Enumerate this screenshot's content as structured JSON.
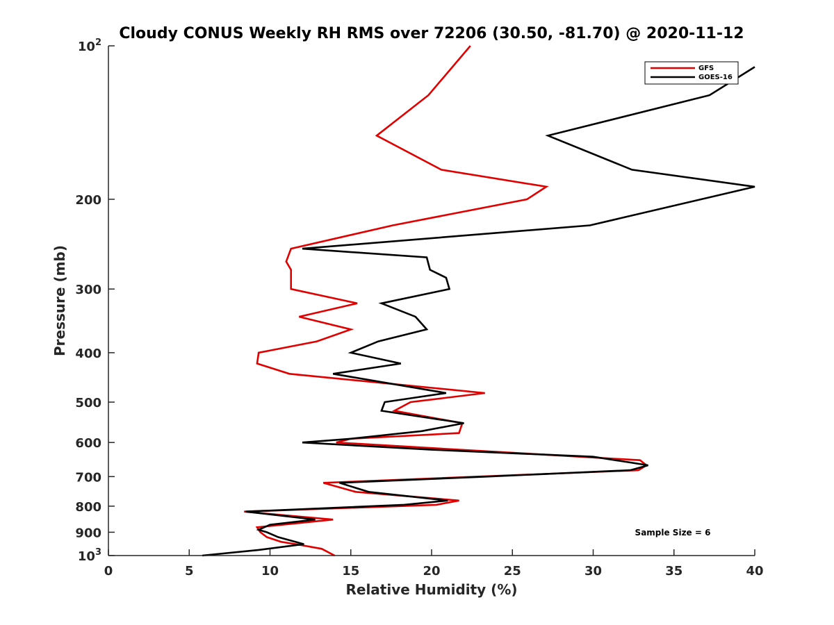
{
  "chart_data": {
    "type": "line",
    "title": "Cloudy CONUS Weekly RH RMS over 72206 (30.50, -81.70) @ 2020-11-12",
    "xlabel": "Relative Humidity (%)",
    "ylabel": "Pressure (mb)",
    "xlim": [
      0,
      40
    ],
    "ylim": [
      100,
      1000
    ],
    "yscale": "log",
    "y_reversed": true,
    "grid": false,
    "legend_position": "top-right",
    "x_ticks": [
      {
        "value": 0,
        "label": "0"
      },
      {
        "value": 5,
        "label": "5"
      },
      {
        "value": 10,
        "label": "10"
      },
      {
        "value": 15,
        "label": "15"
      },
      {
        "value": 20,
        "label": "20"
      },
      {
        "value": 25,
        "label": "25"
      },
      {
        "value": 30,
        "label": "30"
      },
      {
        "value": 35,
        "label": "35"
      },
      {
        "value": 40,
        "label": "40"
      }
    ],
    "y_ticks": [
      {
        "value": 100,
        "base": "10",
        "exp": "2"
      },
      {
        "value": 200,
        "label": "200"
      },
      {
        "value": 300,
        "label": "300"
      },
      {
        "value": 400,
        "label": "400"
      },
      {
        "value": 500,
        "label": "500"
      },
      {
        "value": 600,
        "label": "600"
      },
      {
        "value": 700,
        "label": "700"
      },
      {
        "value": 800,
        "label": "800"
      },
      {
        "value": 900,
        "label": "900"
      },
      {
        "value": 1000,
        "base": "10",
        "exp": "3"
      }
    ],
    "series": [
      {
        "name": "GFS",
        "color": "#e00000",
        "points": [
          [
            22.4,
            100
          ],
          [
            19.8,
            125
          ],
          [
            16.6,
            150
          ],
          [
            20.6,
            175
          ],
          [
            27.1,
            189
          ],
          [
            25.9,
            200
          ],
          [
            17.6,
            225
          ],
          [
            11.3,
            250
          ],
          [
            11.0,
            265
          ],
          [
            11.3,
            275
          ],
          [
            11.3,
            300
          ],
          [
            15.4,
            320
          ],
          [
            11.8,
            340
          ],
          [
            15.0,
            360
          ],
          [
            12.9,
            380
          ],
          [
            9.3,
            400
          ],
          [
            9.2,
            420
          ],
          [
            11.2,
            440
          ],
          [
            23.3,
            480
          ],
          [
            18.7,
            500
          ],
          [
            17.7,
            520
          ],
          [
            21.9,
            550
          ],
          [
            21.7,
            575
          ],
          [
            15.0,
            590
          ],
          [
            14.1,
            600
          ],
          [
            32.9,
            650
          ],
          [
            33.3,
            665
          ],
          [
            32.8,
            680
          ],
          [
            13.3,
            720
          ],
          [
            15.3,
            750
          ],
          [
            21.7,
            780
          ],
          [
            20.3,
            795
          ],
          [
            8.4,
            820
          ],
          [
            13.9,
            850
          ],
          [
            9.2,
            880
          ],
          [
            9.4,
            900
          ],
          [
            9.8,
            920
          ],
          [
            10.7,
            940
          ],
          [
            11.6,
            950
          ],
          [
            13.2,
            970
          ],
          [
            14.0,
            1000
          ]
        ]
      },
      {
        "name": "GOES-16",
        "color": "#000000",
        "points": [
          [
            40.0,
            110
          ],
          [
            37.2,
            125
          ],
          [
            27.2,
            150
          ],
          [
            32.4,
            175
          ],
          [
            40.0,
            189
          ],
          [
            29.8,
            225
          ],
          [
            12.0,
            250
          ],
          [
            19.7,
            260
          ],
          [
            19.9,
            275
          ],
          [
            20.9,
            285
          ],
          [
            21.1,
            300
          ],
          [
            16.9,
            320
          ],
          [
            19.0,
            340
          ],
          [
            19.7,
            360
          ],
          [
            16.7,
            380
          ],
          [
            15.0,
            400
          ],
          [
            18.1,
            420
          ],
          [
            13.9,
            440
          ],
          [
            20.9,
            480
          ],
          [
            17.1,
            500
          ],
          [
            16.9,
            520
          ],
          [
            22.0,
            550
          ],
          [
            19.4,
            570
          ],
          [
            15.0,
            590
          ],
          [
            12.0,
            600
          ],
          [
            20.0,
            620
          ],
          [
            30.0,
            640
          ],
          [
            33.4,
            665
          ],
          [
            32.3,
            680
          ],
          [
            23.4,
            700
          ],
          [
            14.3,
            720
          ],
          [
            16.1,
            750
          ],
          [
            21.0,
            780
          ],
          [
            18.3,
            795
          ],
          [
            8.5,
            820
          ],
          [
            12.8,
            850
          ],
          [
            10.0,
            870
          ],
          [
            9.3,
            890
          ],
          [
            9.8,
            900
          ],
          [
            10.5,
            920
          ],
          [
            12.1,
            950
          ],
          [
            9.3,
            975
          ],
          [
            5.8,
            1000
          ]
        ]
      }
    ],
    "annotation": "Sample Size = 6"
  }
}
